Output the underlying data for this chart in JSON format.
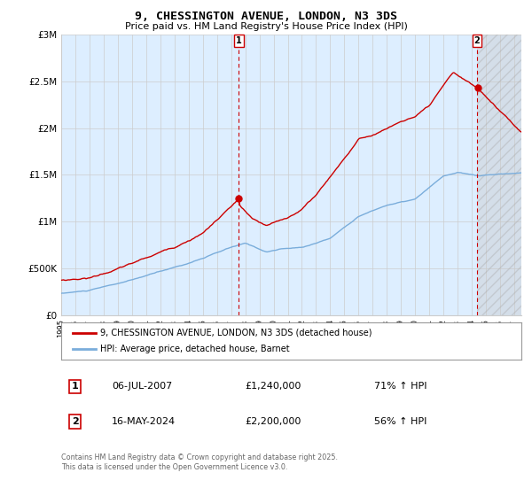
{
  "title": "9, CHESSINGTON AVENUE, LONDON, N3 3DS",
  "subtitle": "Price paid vs. HM Land Registry's House Price Index (HPI)",
  "legend_line1": "9, CHESSINGTON AVENUE, LONDON, N3 3DS (detached house)",
  "legend_line2": "HPI: Average price, detached house, Barnet",
  "annotation1_num": "1",
  "annotation1_date": "06-JUL-2007",
  "annotation1_price": "£1,240,000",
  "annotation1_hpi": "71% ↑ HPI",
  "annotation2_num": "2",
  "annotation2_date": "16-MAY-2024",
  "annotation2_price": "£2,200,000",
  "annotation2_hpi": "56% ↑ HPI",
  "footnote": "Contains HM Land Registry data © Crown copyright and database right 2025.\nThis data is licensed under the Open Government Licence v3.0.",
  "red_color": "#cc0000",
  "blue_color": "#7aaddb",
  "vline1_color": "#cc0000",
  "vline2_color": "#cc0000",
  "grid_color": "#cccccc",
  "bg_color": "#ffffff",
  "plot_bg_color": "#ddeeff",
  "xmin": 1995.0,
  "xmax": 2027.5,
  "ymin": 0,
  "ymax": 3000000,
  "marker1_x": 2007.54,
  "marker2_x": 2024.37,
  "marker1_y_red": 1240000,
  "marker2_y_red": 2200000,
  "yticks": [
    0,
    500000,
    1000000,
    1500000,
    2000000,
    2500000,
    3000000
  ],
  "ytick_labels": [
    "£0",
    "£500K",
    "£1M",
    "£1.5M",
    "£2M",
    "£2.5M",
    "£3M"
  ],
  "hatch_start": 2024.37,
  "hatch_end": 2027.5
}
